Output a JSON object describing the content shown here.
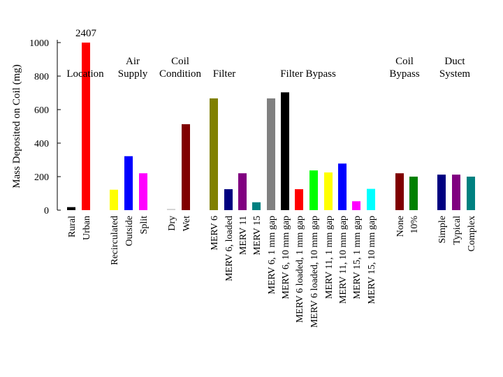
{
  "chart_data": {
    "type": "bar",
    "ylabel": "Mass Deposited on Coil (mg)",
    "ylim": [
      0,
      1000
    ],
    "yticks": [
      0,
      200,
      400,
      600,
      800,
      1000
    ],
    "grid": false,
    "clipped_annotation": "2407",
    "groups": [
      {
        "label": [
          "Location"
        ],
        "bars": [
          {
            "name": "Rural",
            "value": 18,
            "color": "#000000"
          },
          {
            "name": "Urban",
            "value": 1000,
            "color": "#ff0000",
            "clipped": true
          }
        ]
      },
      {
        "label": [
          "Air",
          "Supply"
        ],
        "bars": [
          {
            "name": "Recirculated",
            "value": 122,
            "color": "#ffff00"
          },
          {
            "name": "Outside",
            "value": 322,
            "color": "#0000ff"
          },
          {
            "name": "Split",
            "value": 220,
            "color": "#ff00ff"
          }
        ]
      },
      {
        "label": [
          "Coil",
          "Condition"
        ],
        "bars": [
          {
            "name": "Dry",
            "value": 8,
            "color": "#d3d3d3"
          },
          {
            "name": "Wet",
            "value": 513,
            "color": "#800000"
          }
        ]
      },
      {
        "label": [
          "Filter"
        ],
        "bars": [
          {
            "name": "MERV 6",
            "value": 667,
            "color": "#808000"
          },
          {
            "name": "MERV 6, loaded",
            "value": 125,
            "color": "#000080"
          },
          {
            "name": "MERV 11",
            "value": 220,
            "color": "#800080"
          },
          {
            "name": "MERV 15",
            "value": 47,
            "color": "#008080"
          }
        ]
      },
      {
        "label": [
          "Filter Bypass"
        ],
        "bars": [
          {
            "name": "MERV 6, 1 mm gap",
            "value": 667,
            "color": "#808080"
          },
          {
            "name": "MERV 6, 10 mm gap",
            "value": 703,
            "color": "#000000"
          },
          {
            "name": "MERV 6 loaded, 1 mm gap",
            "value": 125,
            "color": "#ff0000"
          },
          {
            "name": "MERV 6 loaded, 10 mm gap",
            "value": 237,
            "color": "#00ff00"
          },
          {
            "name": "MERV 11, 1 mm gap",
            "value": 225,
            "color": "#ffff00"
          },
          {
            "name": "MERV 11, 10 mm gap",
            "value": 278,
            "color": "#0000ff"
          },
          {
            "name": "MERV 15, 1 mm gap",
            "value": 53,
            "color": "#ff00ff"
          },
          {
            "name": "MERV 15, 10 mm gap",
            "value": 127,
            "color": "#00ffff"
          }
        ]
      },
      {
        "label": [
          "Coil",
          "Bypass"
        ],
        "bars": [
          {
            "name": "None",
            "value": 220,
            "color": "#800000"
          },
          {
            "name": "10%",
            "value": 200,
            "color": "#008000"
          }
        ]
      },
      {
        "label": [
          "Duct",
          "System"
        ],
        "bars": [
          {
            "name": "Simple",
            "value": 212,
            "color": "#000080"
          },
          {
            "name": "Typical",
            "value": 212,
            "color": "#800080"
          },
          {
            "name": "Complex",
            "value": 200,
            "color": "#008080"
          }
        ]
      }
    ]
  }
}
